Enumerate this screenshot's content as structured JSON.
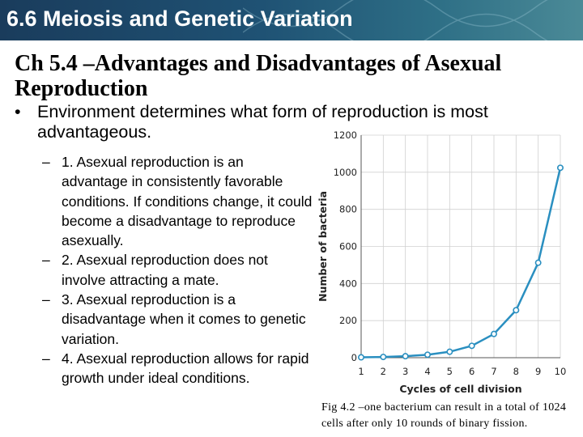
{
  "slide": {
    "banner_title": "6.6 Meiosis and Genetic Variation",
    "heading": "Ch 5.4 –Advantages and Disadvantages of Asexual Reproduction",
    "bullet_marker": "•",
    "bullet": "Environment determines what form of reproduction is most advantageous.",
    "sub_marker": "–",
    "sub_items": [
      "1. Asexual reproduction is an advantage in consistently favorable conditions. If conditions change, it could become a disadvantage to reproduce asexually.",
      "2. Asexual reproduction does not involve attracting a mate.",
      "3. Asexual reproduction is a disadvantage when it comes to genetic variation.",
      "4. Asexual reproduction allows for rapid growth under ideal conditions."
    ],
    "caption": "Fig 4.2 –one bacterium can result in a total of 1024 cells after only 10 rounds of binary fission."
  },
  "colors": {
    "banner": "#1f5274",
    "line": "#2a8fc0",
    "marker_fill": "#ffffff",
    "grid": "#d0d0d0"
  },
  "chart_data": {
    "type": "line",
    "title": "",
    "xlabel": "Cycles of cell division",
    "ylabel": "Number of bacteria",
    "x": [
      1,
      2,
      3,
      4,
      5,
      6,
      7,
      8,
      9,
      10
    ],
    "series": [
      {
        "values": [
          2,
          4,
          8,
          16,
          32,
          64,
          128,
          256,
          512,
          1024
        ]
      }
    ],
    "x_ticks": [
      "1",
      "2",
      "3",
      "4",
      "5",
      "6",
      "7",
      "8",
      "9",
      "10"
    ],
    "y_ticks": [
      "0",
      "200",
      "400",
      "600",
      "800",
      "1000",
      "1200"
    ],
    "ylim": [
      0,
      1200
    ],
    "xlim": [
      1,
      10
    ],
    "grid": true,
    "legend": "none"
  }
}
